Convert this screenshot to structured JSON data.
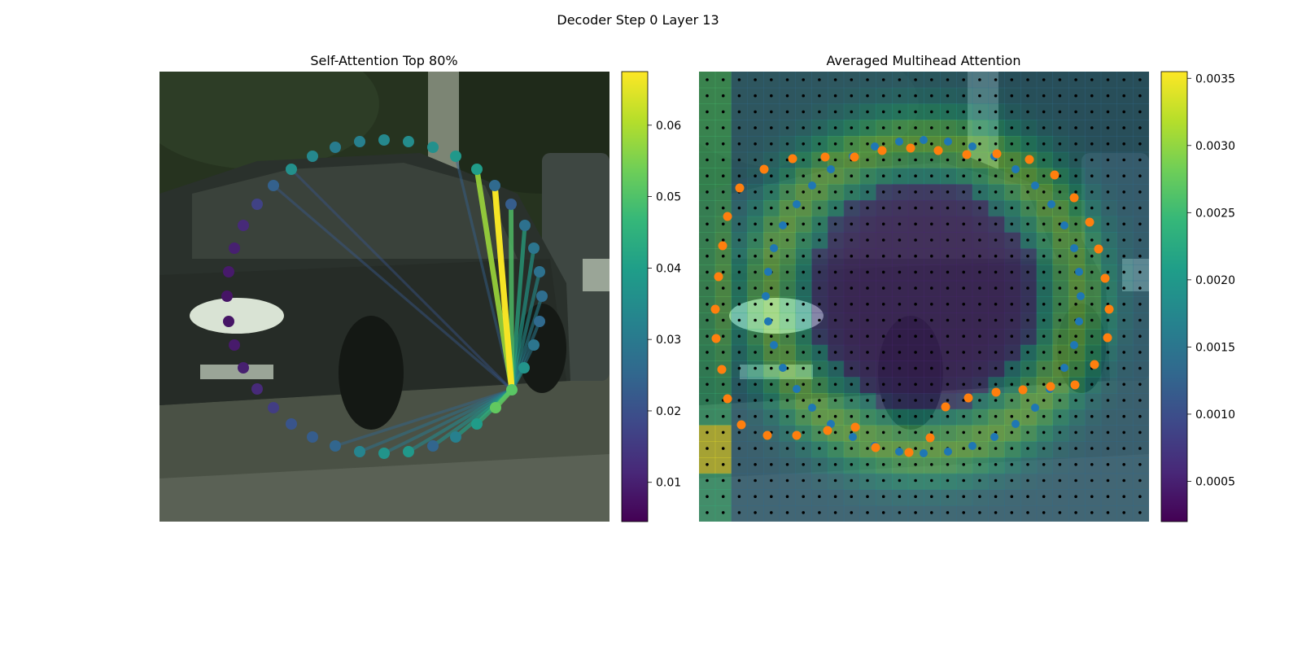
{
  "figure": {
    "suptitle": "Decoder Step 0 Layer 13"
  },
  "colors": {
    "viridis": [
      "#440154",
      "#482878",
      "#3e4989",
      "#31688e",
      "#26828e",
      "#1f9e89",
      "#35b779",
      "#6ece58",
      "#b5de2b",
      "#fde725"
    ],
    "blue_points": "#1f77b4",
    "orange_points": "#ff7f0e",
    "grid_dots": "#000000"
  },
  "chart_data": [
    {
      "type": "scatter",
      "title": "Self-Attention Top 80%",
      "background": "street photo: dark hatchback car, trees, sidewalk",
      "colorbar": {
        "min": 0.0045,
        "max": 0.0675,
        "ticks": [
          0.01,
          0.02,
          0.03,
          0.04,
          0.05,
          0.06
        ],
        "tick_labels": [
          "0.01",
          "0.02",
          "0.03",
          "0.04",
          "0.05",
          "0.06"
        ]
      },
      "query_index": 34,
      "points": [
        {
          "x": 472,
          "y": 172,
          "v": 0.034
        },
        {
          "x": 502,
          "y": 174,
          "v": 0.035
        },
        {
          "x": 532,
          "y": 181,
          "v": 0.036
        },
        {
          "x": 560,
          "y": 192,
          "v": 0.038
        },
        {
          "x": 586,
          "y": 208,
          "v": 0.039
        },
        {
          "x": 608,
          "y": 228,
          "v": 0.026
        },
        {
          "x": 628,
          "y": 251,
          "v": 0.023
        },
        {
          "x": 645,
          "y": 277,
          "v": 0.028
        },
        {
          "x": 656,
          "y": 305,
          "v": 0.029
        },
        {
          "x": 663,
          "y": 334,
          "v": 0.028
        },
        {
          "x": 666,
          "y": 364,
          "v": 0.027
        },
        {
          "x": 663,
          "y": 395,
          "v": 0.026
        },
        {
          "x": 656,
          "y": 424,
          "v": 0.029
        },
        {
          "x": 644,
          "y": 452,
          "v": 0.037
        },
        {
          "x": 609,
          "y": 501,
          "v": 0.052
        },
        {
          "x": 586,
          "y": 521,
          "v": 0.039
        },
        {
          "x": 560,
          "y": 537,
          "v": 0.032
        },
        {
          "x": 532,
          "y": 548,
          "v": 0.025
        },
        {
          "x": 502,
          "y": 555,
          "v": 0.038
        },
        {
          "x": 472,
          "y": 557,
          "v": 0.037
        },
        {
          "x": 442,
          "y": 555,
          "v": 0.033
        },
        {
          "x": 412,
          "y": 548,
          "v": 0.025
        },
        {
          "x": 384,
          "y": 537,
          "v": 0.023
        },
        {
          "x": 358,
          "y": 521,
          "v": 0.021
        },
        {
          "x": 336,
          "y": 501,
          "v": 0.016
        },
        {
          "x": 316,
          "y": 478,
          "v": 0.012
        },
        {
          "x": 299,
          "y": 452,
          "v": 0.01
        },
        {
          "x": 288,
          "y": 424,
          "v": 0.009
        },
        {
          "x": 281,
          "y": 395,
          "v": 0.008
        },
        {
          "x": 279,
          "y": 364,
          "v": 0.008
        },
        {
          "x": 281,
          "y": 334,
          "v": 0.009
        },
        {
          "x": 288,
          "y": 305,
          "v": 0.01
        },
        {
          "x": 299,
          "y": 277,
          "v": 0.012
        },
        {
          "x": 316,
          "y": 251,
          "v": 0.017
        },
        {
          "x": 629,
          "y": 479,
          "v": 0.051
        },
        {
          "x": 336,
          "y": 228,
          "v": 0.024
        },
        {
          "x": 358,
          "y": 208,
          "v": 0.036
        },
        {
          "x": 384,
          "y": 192,
          "v": 0.034
        },
        {
          "x": 412,
          "y": 181,
          "v": 0.031
        },
        {
          "x": 442,
          "y": 174,
          "v": 0.032
        }
      ],
      "edges": [
        {
          "to": 5,
          "w": 0.067
        },
        {
          "to": 4,
          "w": 0.058
        },
        {
          "to": 6,
          "w": 0.05
        },
        {
          "to": 7,
          "w": 0.042
        },
        {
          "to": 8,
          "w": 0.038
        },
        {
          "to": 9,
          "w": 0.035
        },
        {
          "to": 10,
          "w": 0.032
        },
        {
          "to": 11,
          "w": 0.03
        },
        {
          "to": 12,
          "w": 0.03
        },
        {
          "to": 13,
          "w": 0.036
        },
        {
          "to": 14,
          "w": 0.052
        },
        {
          "to": 15,
          "w": 0.045
        },
        {
          "to": 16,
          "w": 0.04
        },
        {
          "to": 17,
          "w": 0.036
        },
        {
          "to": 18,
          "w": 0.034
        },
        {
          "to": 19,
          "w": 0.03
        },
        {
          "to": 20,
          "w": 0.028
        },
        {
          "to": 21,
          "w": 0.025
        },
        {
          "to": 35,
          "w": 0.022
        },
        {
          "to": 36,
          "w": 0.021
        },
        {
          "to": 3,
          "w": 0.024
        }
      ]
    },
    {
      "type": "heatmap",
      "title": "Averaged Multihead Attention",
      "background": "same street photo with attention heatmap overlay",
      "colorbar": {
        "min": 0.0002,
        "max": 0.00355,
        "ticks": [
          0.0005,
          0.001,
          0.0015,
          0.002,
          0.0025,
          0.003,
          0.0035
        ],
        "tick_labels": [
          "0.0005",
          "0.0010",
          "0.0015",
          "0.0020",
          "0.0025",
          "0.0030",
          "0.0035"
        ]
      },
      "grid": {
        "rows": 28,
        "cols": 28
      },
      "blue_points": [
        [
          1075,
          180
        ],
        [
          1105,
          174
        ],
        [
          1135,
          172
        ],
        [
          1165,
          174
        ],
        [
          1195,
          180
        ],
        [
          1222,
          192
        ],
        [
          1248,
          208
        ],
        [
          1272,
          228
        ],
        [
          1292,
          251
        ],
        [
          1308,
          277
        ],
        [
          1320,
          305
        ],
        [
          1326,
          334
        ],
        [
          1328,
          364
        ],
        [
          1326,
          395
        ],
        [
          1320,
          424
        ],
        [
          1308,
          452
        ],
        [
          1290,
          478
        ],
        [
          1272,
          501
        ],
        [
          1248,
          521
        ],
        [
          1222,
          537
        ],
        [
          1195,
          548
        ],
        [
          1165,
          555
        ],
        [
          1135,
          557
        ],
        [
          1105,
          555
        ],
        [
          1075,
          548
        ],
        [
          1048,
          537
        ],
        [
          1021,
          521
        ],
        [
          998,
          501
        ],
        [
          979,
          478
        ],
        [
          962,
          452
        ],
        [
          951,
          424
        ],
        [
          944,
          395
        ],
        [
          941,
          364
        ],
        [
          944,
          334
        ],
        [
          951,
          305
        ],
        [
          962,
          277
        ],
        [
          979,
          251
        ],
        [
          998,
          228
        ],
        [
          1021,
          208
        ],
        [
          1048,
          192
        ]
      ],
      "orange_points": [
        [
          974,
          195
        ],
        [
          1014,
          193
        ],
        [
          1050,
          193
        ],
        [
          1084,
          185
        ],
        [
          1119,
          182
        ],
        [
          1153,
          185
        ],
        [
          1188,
          190
        ],
        [
          1225,
          189
        ],
        [
          1265,
          196
        ],
        [
          1296,
          215
        ],
        [
          1320,
          243
        ],
        [
          1339,
          273
        ],
        [
          1350,
          306
        ],
        [
          1358,
          342
        ],
        [
          1363,
          380
        ],
        [
          1361,
          415
        ],
        [
          1345,
          448
        ],
        [
          1321,
          473
        ],
        [
          1291,
          475
        ],
        [
          1257,
          479
        ],
        [
          1224,
          482
        ],
        [
          1190,
          489
        ],
        [
          1162,
          500
        ],
        [
          1143,
          538
        ],
        [
          1117,
          556
        ],
        [
          1076,
          550
        ],
        [
          1051,
          525
        ],
        [
          1017,
          529
        ],
        [
          979,
          535
        ],
        [
          943,
          535
        ],
        [
          911,
          522
        ],
        [
          894,
          490
        ],
        [
          887,
          454
        ],
        [
          880,
          416
        ],
        [
          879,
          380
        ],
        [
          883,
          340
        ],
        [
          888,
          302
        ],
        [
          894,
          266
        ],
        [
          909,
          231
        ],
        [
          939,
          208
        ]
      ]
    }
  ]
}
